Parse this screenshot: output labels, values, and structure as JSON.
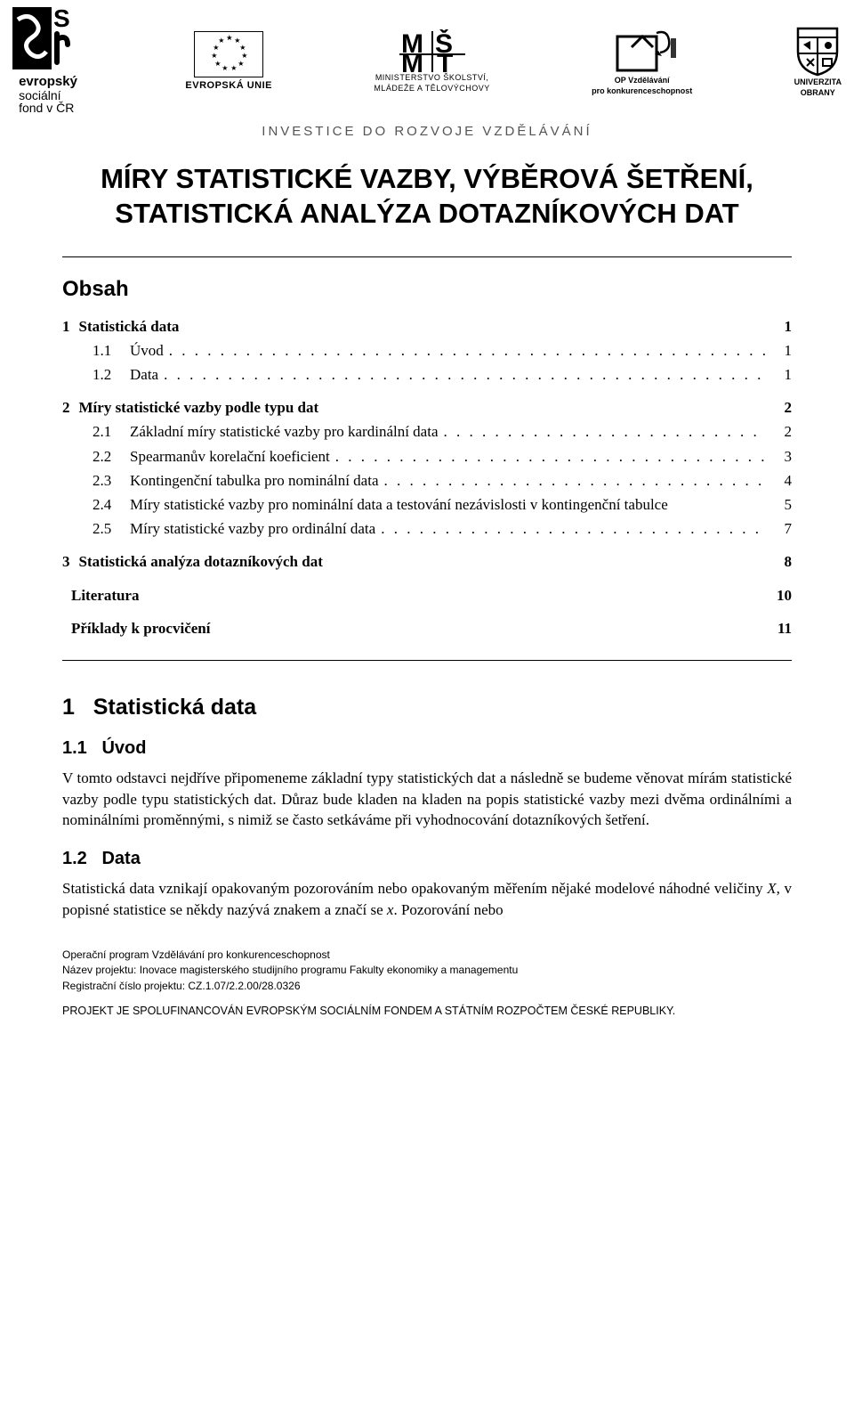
{
  "logos": {
    "esf": {
      "line1": "evropský",
      "line2": "sociální",
      "line3": "fond v ČR"
    },
    "eu": {
      "label": "EVROPSKÁ UNIE"
    },
    "msmt": {
      "line1": "MINISTERSTVO ŠKOLSTVÍ,",
      "line2": "MLÁDEŽE A TĚLOVÝCHOVY"
    },
    "op": {
      "line1": "OP Vzdělávání",
      "line2": "pro konkurenceschopnost"
    },
    "uni": {
      "line1": "UNIVERZITA",
      "line2": "OBRANY"
    }
  },
  "invest_line": "INVESTICE DO ROZVOJE VZDĚLÁVÁNÍ",
  "main_title": "MÍRY STATISTICKÉ VAZBY, VÝBĚROVÁ ŠETŘENÍ, STATISTICKÁ ANALÝZA DOTAZNÍKOVÝCH DAT",
  "obsah_title": "Obsah",
  "toc": [
    {
      "level": 1,
      "num": "1",
      "label": "Statistická data",
      "page": "1"
    },
    {
      "level": 2,
      "num": "1.1",
      "label": "Úvod",
      "page": "1"
    },
    {
      "level": 2,
      "num": "1.2",
      "label": "Data",
      "page": "1"
    },
    {
      "level": 1,
      "num": "2",
      "label": "Míry statistické vazby podle typu dat",
      "page": "2"
    },
    {
      "level": 2,
      "num": "2.1",
      "label": "Základní míry statistické vazby pro kardinální data",
      "page": "2"
    },
    {
      "level": 2,
      "num": "2.2",
      "label": "Spearmanův korelační koeficient",
      "page": "3"
    },
    {
      "level": 2,
      "num": "2.3",
      "label": "Kontingenční tabulka pro nominální data",
      "page": "4"
    },
    {
      "level": 2,
      "num": "2.4",
      "label": "Míry statistické vazby pro nominální data a testování nezávislosti v kontingenční tabulce",
      "page": "5",
      "nodots": true
    },
    {
      "level": 2,
      "num": "2.5",
      "label": "Míry statistické vazby pro ordinální data",
      "page": "7"
    },
    {
      "level": 1,
      "num": "3",
      "label": "Statistická analýza dotazníkových dat",
      "page": "8"
    },
    {
      "level": 1,
      "num": "",
      "label": "Literatura",
      "page": "10"
    },
    {
      "level": 1,
      "num": "",
      "label": "Příklady k procvičení",
      "page": "11"
    }
  ],
  "sections": {
    "s1": {
      "num": "1",
      "title": "Statistická data"
    },
    "s11": {
      "num": "1.1",
      "title": "Úvod"
    },
    "p11": "V tomto odstavci nejdříve připomeneme základní typy statistických dat a následně se budeme věnovat mírám statistické vazby podle typu statistických dat. Důraz bude kladen na kladen na popis statistické vazby mezi dvěma ordinálními a nominálními proměnnými, s nimiž se často setkáváme při vyhodnocování dotazníkových šetření.",
    "s12": {
      "num": "1.2",
      "title": "Data"
    },
    "p12_a": "Statistická data vznikají opakovaným pozorováním nebo opakovaným měřením nějaké modelové náhodné veličiny ",
    "p12_var1": "X",
    "p12_b": ", v popisné statistice se někdy nazývá znakem a značí se ",
    "p12_var2": "x",
    "p12_c": ". Pozorování nebo"
  },
  "footer": {
    "l1": "Operační program Vzdělávání pro konkurenceschopnost",
    "l2": "Název projektu: Inovace magisterského studijního programu Fakulty ekonomiky a managementu",
    "l3": "Registrační číslo projektu: CZ.1.07/2.2.00/28.0326",
    "project": "PROJEKT JE SPOLUFINANCOVÁN EVROPSKÝM SOCIÁLNÍM FONDEM A STÁTNÍM ROZPOČTEM ČESKÉ REPUBLIKY."
  }
}
